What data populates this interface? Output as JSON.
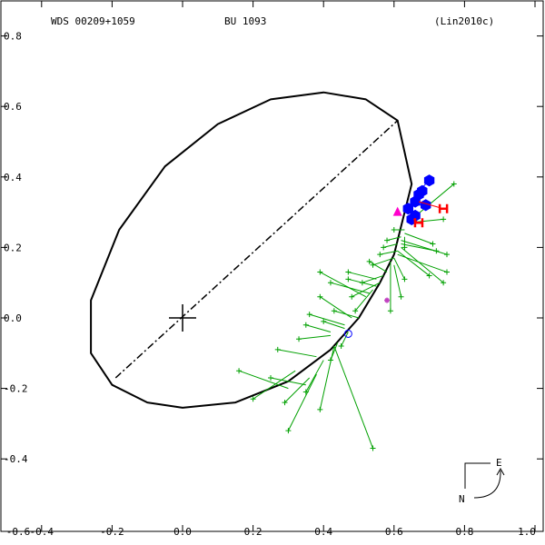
{
  "header": {
    "wds_id": "WDS 00209+1059",
    "discoverer": "BU 1093",
    "reference": "(Lin2010c)"
  },
  "compass": {
    "east_label": "E",
    "north_label": "N"
  },
  "chart_data": {
    "type": "scatter",
    "title": "",
    "xlabel": "",
    "ylabel": "",
    "xlim": [
      -0.6,
      1.0
    ],
    "ylim": [
      -0.6,
      0.8
    ],
    "x_ticks": [
      "-0.6",
      "-0.4",
      "-0.2",
      "0.0",
      "0.2",
      "0.4",
      "0.6",
      "0.8",
      "1.0"
    ],
    "y_ticks": [
      "0.8",
      "0.6",
      "0.4",
      "0.2",
      "0.0",
      "-0.2",
      "-0.4"
    ],
    "x_tick_values": [
      -0.6,
      -0.4,
      -0.2,
      0.0,
      0.2,
      0.4,
      0.6,
      0.8,
      1.0
    ],
    "y_tick_values": [
      0.8,
      0.6,
      0.4,
      0.2,
      0.0,
      -0.2,
      -0.4
    ],
    "grid": false,
    "colors": {
      "orbit": "#000000",
      "micrometric": "#00a000",
      "speckle": "#0000ff",
      "hipparcos": "#ff0000",
      "triangle": "#ff00cc",
      "star": "#c040c0"
    },
    "primary": {
      "x": 0.0,
      "y": 0.0
    },
    "line_of_nodes": [
      [
        -0.19,
        -0.17
      ],
      [
        0.61,
        0.56
      ]
    ],
    "orbit_path": [
      [
        0.62,
        0.26
      ],
      [
        0.65,
        0.38
      ],
      [
        0.61,
        0.56
      ],
      [
        0.52,
        0.62
      ],
      [
        0.4,
        0.64
      ],
      [
        0.25,
        0.62
      ],
      [
        0.1,
        0.55
      ],
      [
        -0.05,
        0.43
      ],
      [
        -0.18,
        0.25
      ],
      [
        -0.26,
        0.05
      ],
      [
        -0.26,
        -0.1
      ],
      [
        -0.2,
        -0.19
      ],
      [
        -0.1,
        -0.24
      ],
      [
        0.0,
        -0.255
      ],
      [
        0.15,
        -0.24
      ],
      [
        0.3,
        -0.18
      ],
      [
        0.42,
        -0.09
      ],
      [
        0.5,
        0.0
      ],
      [
        0.56,
        0.1
      ],
      [
        0.6,
        0.18
      ],
      [
        0.62,
        0.26
      ]
    ],
    "micrometric": [
      {
        "x": 0.16,
        "y": -0.15,
        "fx": 0.3,
        "fy": -0.2
      },
      {
        "x": 0.2,
        "y": -0.23,
        "fx": 0.32,
        "fy": -0.15
      },
      {
        "x": 0.25,
        "y": -0.17,
        "fx": 0.35,
        "fy": -0.19
      },
      {
        "x": 0.27,
        "y": -0.09,
        "fx": 0.38,
        "fy": -0.11
      },
      {
        "x": 0.29,
        "y": -0.24,
        "fx": 0.36,
        "fy": -0.17
      },
      {
        "x": 0.3,
        "y": -0.32,
        "fx": 0.38,
        "fy": -0.16
      },
      {
        "x": 0.35,
        "y": -0.21,
        "fx": 0.4,
        "fy": -0.12
      },
      {
        "x": 0.39,
        "y": -0.26,
        "fx": 0.43,
        "fy": -0.08
      },
      {
        "x": 0.42,
        "y": -0.12,
        "fx": 0.44,
        "fy": -0.07
      },
      {
        "x": 0.54,
        "y": -0.37,
        "fx": 0.43,
        "fy": -0.08
      },
      {
        "x": 0.33,
        "y": -0.06,
        "fx": 0.42,
        "fy": -0.05
      },
      {
        "x": 0.4,
        "y": -0.01,
        "fx": 0.46,
        "fy": -0.03
      },
      {
        "x": 0.45,
        "y": -0.08,
        "fx": 0.47,
        "fy": -0.04
      },
      {
        "x": 0.39,
        "y": 0.06,
        "fx": 0.48,
        "fy": 0.0
      },
      {
        "x": 0.43,
        "y": 0.02,
        "fx": 0.5,
        "fy": 0.0
      },
      {
        "x": 0.39,
        "y": 0.13,
        "fx": 0.52,
        "fy": 0.06
      },
      {
        "x": 0.42,
        "y": 0.1,
        "fx": 0.53,
        "fy": 0.07
      },
      {
        "x": 0.47,
        "y": 0.11,
        "fx": 0.55,
        "fy": 0.09
      },
      {
        "x": 0.48,
        "y": 0.06,
        "fx": 0.56,
        "fy": 0.1
      },
      {
        "x": 0.47,
        "y": 0.13,
        "fx": 0.55,
        "fy": 0.11
      },
      {
        "x": 0.49,
        "y": 0.02,
        "fx": 0.54,
        "fy": 0.08
      },
      {
        "x": 0.51,
        "y": 0.1,
        "fx": 0.57,
        "fy": 0.12
      },
      {
        "x": 0.53,
        "y": 0.16,
        "fx": 0.58,
        "fy": 0.13
      },
      {
        "x": 0.59,
        "y": 0.02,
        "fx": 0.59,
        "fy": 0.16
      },
      {
        "x": 0.62,
        "y": 0.06,
        "fx": 0.6,
        "fy": 0.15
      },
      {
        "x": 0.63,
        "y": 0.11,
        "fx": 0.6,
        "fy": 0.17
      },
      {
        "x": 0.7,
        "y": 0.12,
        "fx": 0.61,
        "fy": 0.19
      },
      {
        "x": 0.74,
        "y": 0.1,
        "fx": 0.62,
        "fy": 0.2
      },
      {
        "x": 0.75,
        "y": 0.13,
        "fx": 0.61,
        "fy": 0.18
      },
      {
        "x": 0.72,
        "y": 0.19,
        "fx": 0.62,
        "fy": 0.21
      },
      {
        "x": 0.75,
        "y": 0.18,
        "fx": 0.62,
        "fy": 0.22
      },
      {
        "x": 0.71,
        "y": 0.21,
        "fx": 0.63,
        "fy": 0.24
      },
      {
        "x": 0.63,
        "y": 0.2,
        "fx": 0.63,
        "fy": 0.23
      },
      {
        "x": 0.57,
        "y": 0.2,
        "fx": 0.61,
        "fy": 0.21
      },
      {
        "x": 0.58,
        "y": 0.22,
        "fx": 0.62,
        "fy": 0.23
      },
      {
        "x": 0.6,
        "y": 0.25,
        "fx": 0.63,
        "fy": 0.25
      },
      {
        "x": 0.66,
        "y": 0.27,
        "fx": 0.64,
        "fy": 0.27
      },
      {
        "x": 0.74,
        "y": 0.28,
        "fx": 0.64,
        "fy": 0.27
      },
      {
        "x": 0.77,
        "y": 0.38,
        "fx": 0.65,
        "fy": 0.28
      },
      {
        "x": 0.54,
        "y": 0.15,
        "fx": 0.6,
        "fy": 0.17
      },
      {
        "x": 0.56,
        "y": 0.18,
        "fx": 0.61,
        "fy": 0.19
      },
      {
        "x": 0.35,
        "y": -0.02,
        "fx": 0.42,
        "fy": -0.04
      },
      {
        "x": 0.36,
        "y": 0.01,
        "fx": 0.46,
        "fy": -0.02
      }
    ],
    "speckle": [
      {
        "x": 0.64,
        "y": 0.31,
        "fx": 0.645,
        "fy": 0.305
      },
      {
        "x": 0.66,
        "y": 0.33,
        "fx": 0.655,
        "fy": 0.32
      },
      {
        "x": 0.67,
        "y": 0.35,
        "fx": 0.66,
        "fy": 0.335
      },
      {
        "x": 0.69,
        "y": 0.32,
        "fx": 0.665,
        "fy": 0.32
      },
      {
        "x": 0.66,
        "y": 0.29,
        "fx": 0.655,
        "fy": 0.295
      },
      {
        "x": 0.65,
        "y": 0.28,
        "fx": 0.65,
        "fy": 0.28
      },
      {
        "x": 0.68,
        "y": 0.36,
        "fx": 0.665,
        "fy": 0.35
      },
      {
        "x": 0.7,
        "y": 0.39,
        "fx": 0.68,
        "fy": 0.37
      }
    ],
    "hipparcos": [
      {
        "x": 0.74,
        "y": 0.31,
        "fx": 0.67,
        "fy": 0.33
      },
      {
        "x": 0.67,
        "y": 0.27,
        "fx": 0.655,
        "fy": 0.28
      }
    ],
    "triangle": {
      "x": 0.61,
      "y": 0.3
    },
    "star_marker": {
      "x": 0.58,
      "y": 0.05
    },
    "circle_marker": {
      "x": 0.47,
      "y": -0.045
    }
  }
}
